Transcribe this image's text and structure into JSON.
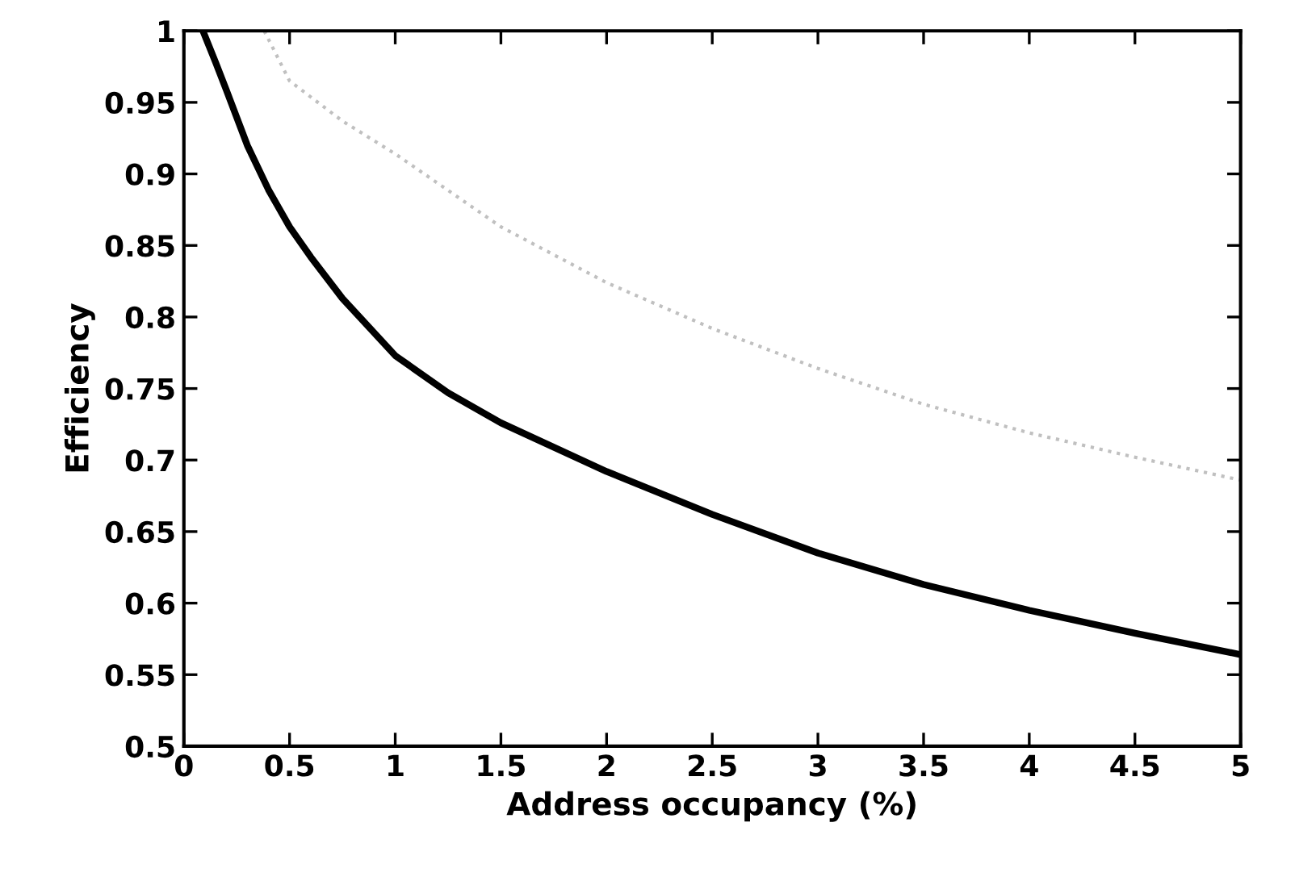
{
  "chart_data": {
    "type": "line",
    "xlabel": "Address occupancy (%)",
    "ylabel": "Efficiency",
    "xlim": [
      0,
      5
    ],
    "ylim": [
      0.5,
      1
    ],
    "xticks": [
      0,
      0.5,
      1,
      1.5,
      2,
      2.5,
      3,
      3.5,
      4,
      4.5,
      5
    ],
    "yticks": [
      0.5,
      0.55,
      0.6,
      0.65,
      0.7,
      0.75,
      0.8,
      0.85,
      0.9,
      0.95,
      1
    ],
    "marker": "none",
    "series": [
      {
        "color": "#000000",
        "line_style": "solid",
        "x": [
          0.09,
          0.15,
          0.2,
          0.3,
          0.4,
          0.5,
          0.6,
          0.75,
          1,
          1.25,
          1.5,
          2,
          2.5,
          3,
          3.5,
          4,
          4.5,
          5
        ],
        "values": [
          1.0,
          0.978,
          0.959,
          0.92,
          0.889,
          0.863,
          0.842,
          0.813,
          0.773,
          0.747,
          0.726,
          0.692,
          0.662,
          0.635,
          0.613,
          0.595,
          0.579,
          0.564
        ]
      },
      {
        "color": "#c0c0c0",
        "line_style": "dotted",
        "x": [
          0.38,
          0.5,
          0.75,
          1,
          1.5,
          2,
          2.5,
          3,
          3.5,
          4,
          4.5,
          5
        ],
        "values": [
          1.0,
          0.965,
          0.937,
          0.914,
          0.863,
          0.824,
          0.792,
          0.764,
          0.739,
          0.719,
          0.702,
          0.686
        ]
      }
    ]
  }
}
